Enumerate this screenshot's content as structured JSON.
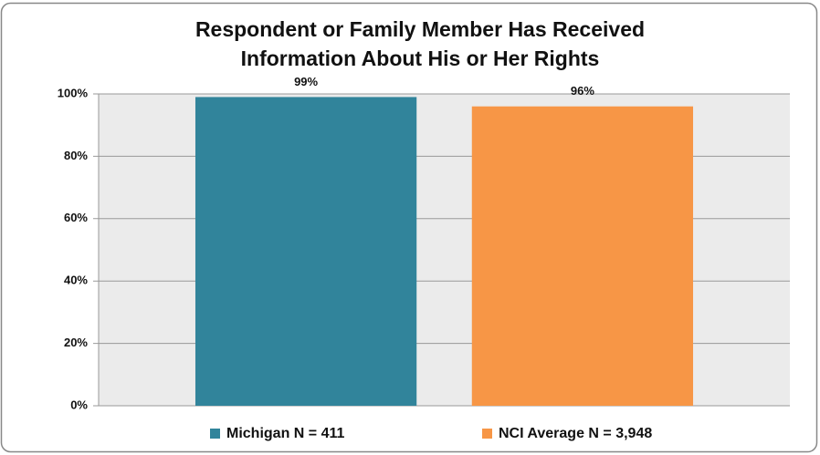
{
  "chart_data": {
    "type": "bar",
    "title": "Respondent or Family Member Has Received Information About His or Her Rights",
    "categories": [
      null
    ],
    "series": [
      {
        "name": "Michigan N = 411",
        "color": "#31849b",
        "values": [
          99
        ],
        "value_labels": [
          "99%"
        ]
      },
      {
        "name": "NCI Average N = 3,948",
        "color": "#f79646",
        "values": [
          96
        ],
        "value_labels": [
          "96%"
        ]
      }
    ],
    "ylim": [
      0,
      100
    ],
    "yticks": [
      {
        "value": 0,
        "label": "0%"
      },
      {
        "value": 20,
        "label": "20%"
      },
      {
        "value": 40,
        "label": "40%"
      },
      {
        "value": 60,
        "label": "60%"
      },
      {
        "value": 80,
        "label": "80%"
      },
      {
        "value": 100,
        "label": "100%"
      }
    ],
    "grid": true,
    "legend": "bottom"
  }
}
